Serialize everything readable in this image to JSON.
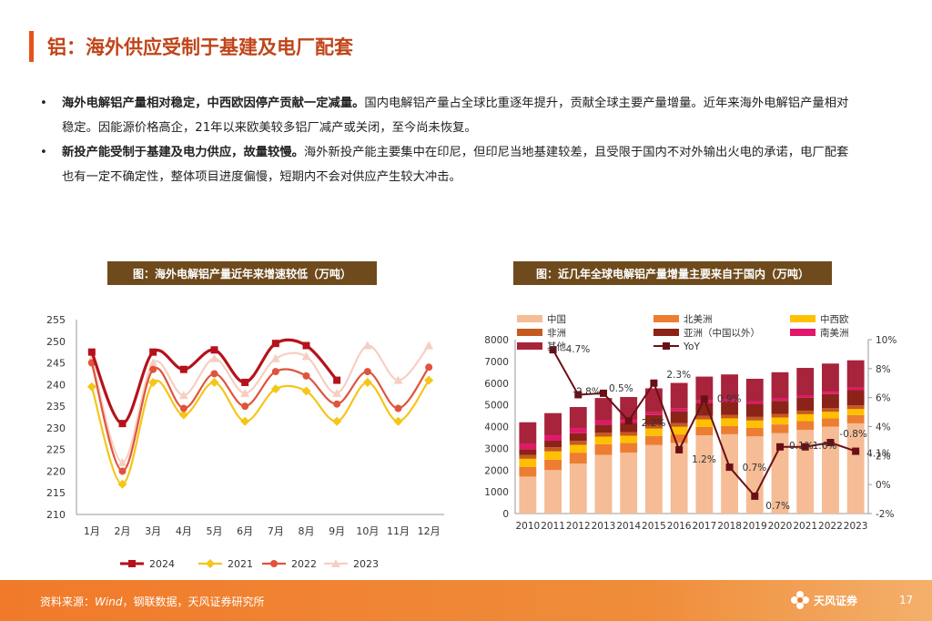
{
  "title": "铝：海外供应受制于基建及电厂配套",
  "bullets": [
    {
      "bold": "海外电解铝产量相对稳定，中西欧因停产贡献一定减量。",
      "text": "国内电解铝产量占全球比重逐年提升，贡献全球主要产量增量。近年来海外电解铝产量相对稳定。因能源价格高企，21年以来欧美较多铝厂减产或关闭，至今尚未恢复。"
    },
    {
      "bold": "新投产能受制于基建及电力供应，故量较慢。",
      "text": "海外新投产能主要集中在印尼，但印尼当地基建较差，且受限于国内不对外输出火电的承诺，电厂配套也有一定不确定性，整体项目进度偏慢，短期内不会对供应产生较大冲击。"
    }
  ],
  "captions": {
    "left": "图：海外电解铝产量近年来增速较低（万吨）",
    "right": "图：近几年全球电解铝产量增量主要来自于国内（万吨）"
  },
  "footer": {
    "source_prefix": "资料来源：",
    "source_italic": "Wind",
    "source_rest": "，钢联数据，天风证券研究所",
    "logo_text": "天风证券",
    "page": "17"
  },
  "colors": {
    "accent": "#e8521a",
    "caption_bg": "#6e4a1c",
    "footer": "#f07a2a"
  },
  "chart_data": [
    {
      "type": "line",
      "title": "图：海外电解铝产量近年来增速较低（万吨）",
      "categories": [
        "1月",
        "2月",
        "3月",
        "4月",
        "5月",
        "6月",
        "7月",
        "8月",
        "9月",
        "10月",
        "11月",
        "12月"
      ],
      "ylim": [
        210,
        255
      ],
      "yticks": [
        210,
        215,
        220,
        225,
        230,
        235,
        240,
        245,
        250,
        255
      ],
      "legend_position": "bottom",
      "series": [
        {
          "name": "2024",
          "color": "#b5121b",
          "values": [
            247.5,
            231,
            247.5,
            243.5,
            248,
            240.5,
            249.5,
            249,
            241,
            null,
            null,
            null
          ]
        },
        {
          "name": "2021",
          "color": "#f5c518",
          "values": [
            239.5,
            217,
            240.5,
            233,
            240.5,
            231.5,
            239,
            238.5,
            231.5,
            240.5,
            231.5,
            241
          ]
        },
        {
          "name": "2022",
          "color": "#e0533c",
          "values": [
            245,
            220,
            243.5,
            234.5,
            242.5,
            235,
            243,
            242,
            235.5,
            243,
            234.5,
            244
          ]
        },
        {
          "name": "2023",
          "color": "#f6cfc2",
          "values": [
            246,
            222,
            245,
            237.5,
            246,
            238,
            246,
            246.5,
            238,
            249,
            241,
            249
          ]
        }
      ]
    },
    {
      "type": "bar",
      "title": "图：近几年全球电解铝产量增量主要来自于国内（万吨）",
      "categories": [
        "2010",
        "2011",
        "2012",
        "2013",
        "2014",
        "2015",
        "2016",
        "2017",
        "2018",
        "2019",
        "2020",
        "2021",
        "2022",
        "2023"
      ],
      "ylim": [
        0,
        8000
      ],
      "yticks": [
        0,
        1000,
        2000,
        3000,
        4000,
        5000,
        6000,
        7000,
        8000
      ],
      "y2lim": [
        -2,
        10
      ],
      "y2ticks": [
        "-2%",
        "0%",
        "2%",
        "4%",
        "6%",
        "8%",
        "10%"
      ],
      "legend_position": "top",
      "series": [
        {
          "name": "中国",
          "color": "#f5bc95",
          "values": [
            1700,
            2000,
            2300,
            2700,
            2800,
            3150,
            3250,
            3600,
            3650,
            3550,
            3700,
            3850,
            4000,
            4150
          ]
        },
        {
          "name": "北美洲",
          "color": "#ed7d31",
          "values": [
            450,
            480,
            500,
            490,
            450,
            420,
            390,
            380,
            380,
            390,
            400,
            400,
            380,
            380
          ]
        },
        {
          "name": "中西欧",
          "color": "#ffc000",
          "values": [
            370,
            380,
            360,
            350,
            330,
            340,
            350,
            350,
            350,
            340,
            320,
            320,
            300,
            280
          ]
        },
        {
          "name": "非洲",
          "color": "#c65a1e",
          "values": [
            180,
            190,
            180,
            175,
            170,
            170,
            165,
            165,
            165,
            165,
            165,
            165,
            165,
            165
          ]
        },
        {
          "name": "亚洲（中国以外）",
          "color": "#8b2318",
          "values": [
            250,
            300,
            350,
            380,
            420,
            450,
            550,
            600,
            600,
            600,
            600,
            600,
            650,
            700
          ]
        },
        {
          "name": "南美洲",
          "color": "#e2176a",
          "values": [
            250,
            250,
            230,
            200,
            140,
            130,
            120,
            110,
            110,
            110,
            110,
            110,
            110,
            110
          ]
        },
        {
          "name": "其他",
          "color": "#a8233c",
          "values": [
            1000,
            1020,
            980,
            1020,
            1050,
            1100,
            1185,
            1095,
            1145,
            1045,
            1205,
            1255,
            1295,
            1265
          ]
        }
      ],
      "line": {
        "name": "YoY",
        "axis": "right",
        "color": "#6b0f16",
        "values": [
          null,
          9.3,
          6.2,
          6.3,
          4.4,
          7.0,
          2.4,
          5.9,
          1.2,
          -0.8,
          2.6,
          2.6,
          2.9,
          2.3
        ]
      },
      "annotations": [
        {
          "label": "4.7%",
          "category": "2011"
        },
        {
          "label": "-2.8%",
          "category": "2012"
        },
        {
          "label": "0.5%",
          "category": "2013"
        },
        {
          "label": "2.2%",
          "category": "2014"
        },
        {
          "label": "2.3%",
          "category": "2015"
        },
        {
          "label": "1.2%",
          "category": "2016"
        },
        {
          "label": "0.9%",
          "category": "2017"
        },
        {
          "label": "0.7%",
          "category": "2018"
        },
        {
          "label": "0.7%",
          "category": "2019"
        },
        {
          "label": "0.1%",
          "category": "2020"
        },
        {
          "label": "1.6%",
          "category": "2021"
        },
        {
          "label": "-0.8%",
          "category": "2022"
        },
        {
          "label": "4.1%",
          "category": "2023"
        }
      ]
    }
  ]
}
